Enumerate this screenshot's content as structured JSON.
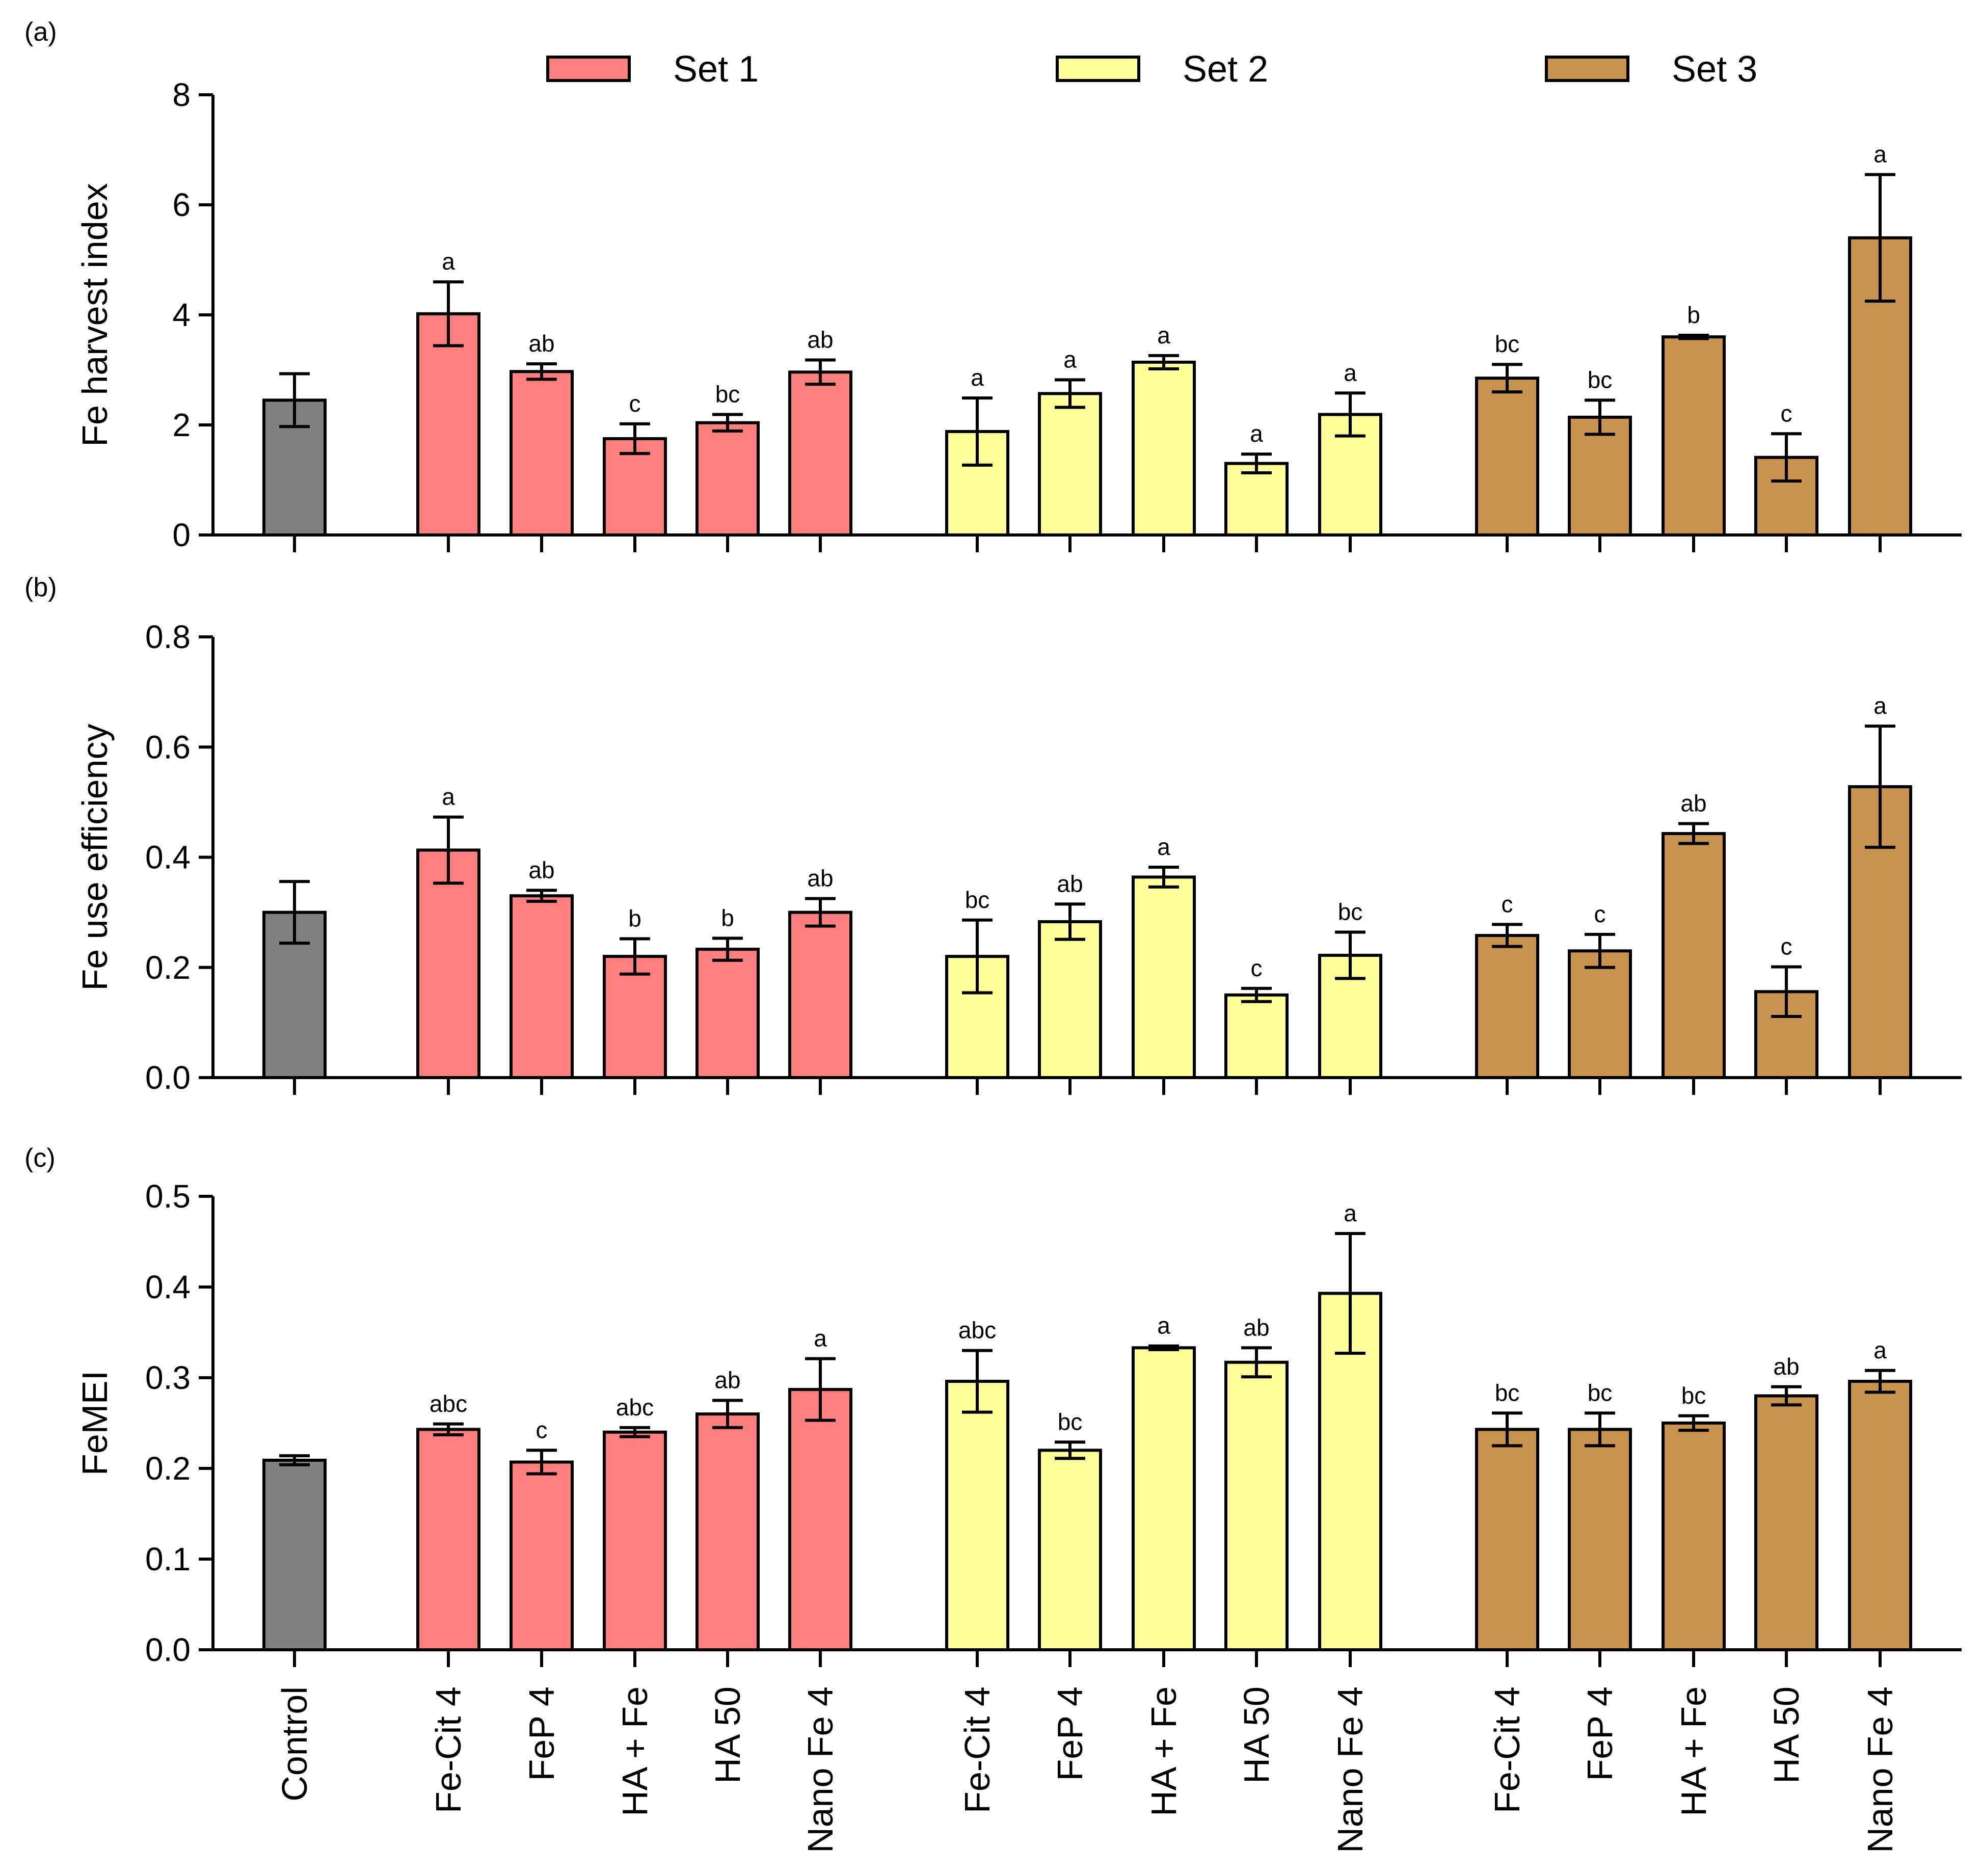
{
  "legend": [
    {
      "name": "Set 1",
      "color": "#ff7f7f"
    },
    {
      "name": "Set 2",
      "color": "#ffff99"
    },
    {
      "name": "Set 3",
      "color": "#c8944d"
    }
  ],
  "control_color": "#808080",
  "categories": [
    "Control",
    "Fe-Cit 4",
    "FeP 4",
    "HA + Fe",
    "HA 50",
    "Nano Fe 4",
    "Fe-Cit 4",
    "FeP 4",
    "HA + Fe",
    "HA 50",
    "Nano Fe 4",
    "Fe-Cit 4",
    "FeP 4",
    "HA + Fe",
    "HA 50",
    "Nano Fe 4"
  ],
  "chart_data": [
    {
      "panel": "(a)",
      "type": "bar",
      "ylabel": "Fe harvest index",
      "ylim": [
        0,
        8
      ],
      "yticks": [
        "0",
        "2",
        "4",
        "6",
        "8"
      ],
      "control": {
        "value": 2.45,
        "error": 0.48,
        "label": ""
      },
      "series": [
        {
          "name": "Set 1",
          "values": [
            4.02,
            2.97,
            1.75,
            2.04,
            2.96
          ],
          "errors": [
            0.58,
            0.14,
            0.27,
            0.15,
            0.22
          ],
          "labels": [
            "a",
            "ab",
            "c",
            "bc",
            "ab"
          ]
        },
        {
          "name": "Set 2",
          "values": [
            1.88,
            2.57,
            3.14,
            1.3,
            2.19
          ],
          "errors": [
            0.61,
            0.25,
            0.12,
            0.17,
            0.39
          ],
          "labels": [
            "a",
            "a",
            "a",
            "a",
            "a"
          ]
        },
        {
          "name": "Set 3",
          "values": [
            2.85,
            2.14,
            3.6,
            1.41,
            5.4
          ],
          "errors": [
            0.25,
            0.31,
            0.03,
            0.43,
            1.15
          ],
          "labels": [
            "bc",
            "bc",
            "b",
            "c",
            "a"
          ]
        }
      ]
    },
    {
      "panel": "(b)",
      "type": "bar",
      "ylabel": "Fe use efficiency",
      "ylim": [
        0,
        0.8
      ],
      "yticks": [
        "0.0",
        "0.2",
        "0.4",
        "0.6",
        "0.8"
      ],
      "control": {
        "value": 0.3,
        "error": 0.056,
        "label": ""
      },
      "series": [
        {
          "name": "Set 1",
          "values": [
            0.413,
            0.33,
            0.22,
            0.233,
            0.3
          ],
          "errors": [
            0.06,
            0.01,
            0.032,
            0.02,
            0.025
          ],
          "labels": [
            "a",
            "ab",
            "b",
            "b",
            "ab"
          ]
        },
        {
          "name": "Set 2",
          "values": [
            0.22,
            0.283,
            0.364,
            0.15,
            0.222
          ],
          "errors": [
            0.066,
            0.032,
            0.018,
            0.012,
            0.042
          ],
          "labels": [
            "bc",
            "ab",
            "a",
            "c",
            "bc"
          ]
        },
        {
          "name": "Set 3",
          "values": [
            0.258,
            0.23,
            0.443,
            0.156,
            0.528
          ],
          "errors": [
            0.02,
            0.03,
            0.018,
            0.045,
            0.11
          ],
          "labels": [
            "c",
            "c",
            "ab",
            "c",
            "a"
          ]
        }
      ]
    },
    {
      "panel": "(c)",
      "type": "bar",
      "ylabel": "FeMEI",
      "ylim": [
        0,
        0.5
      ],
      "yticks": [
        "0.0",
        "0.1",
        "0.2",
        "0.3",
        "0.4",
        "0.5"
      ],
      "control": {
        "value": 0.209,
        "error": 0.005,
        "label": ""
      },
      "series": [
        {
          "name": "Set 1",
          "values": [
            0.243,
            0.207,
            0.24,
            0.26,
            0.287
          ],
          "errors": [
            0.006,
            0.013,
            0.005,
            0.015,
            0.034
          ],
          "labels": [
            "abc",
            "c",
            "abc",
            "ab",
            "a"
          ]
        },
        {
          "name": "Set 2",
          "values": [
            0.296,
            0.22,
            0.333,
            0.317,
            0.393
          ],
          "errors": [
            0.034,
            0.009,
            0.002,
            0.016,
            0.066
          ],
          "labels": [
            "abc",
            "bc",
            "a",
            "ab",
            "a"
          ]
        },
        {
          "name": "Set 3",
          "values": [
            0.243,
            0.243,
            0.25,
            0.28,
            0.296
          ],
          "errors": [
            0.018,
            0.018,
            0.008,
            0.01,
            0.012
          ],
          "labels": [
            "bc",
            "bc",
            "bc",
            "ab",
            "a"
          ]
        }
      ]
    }
  ]
}
